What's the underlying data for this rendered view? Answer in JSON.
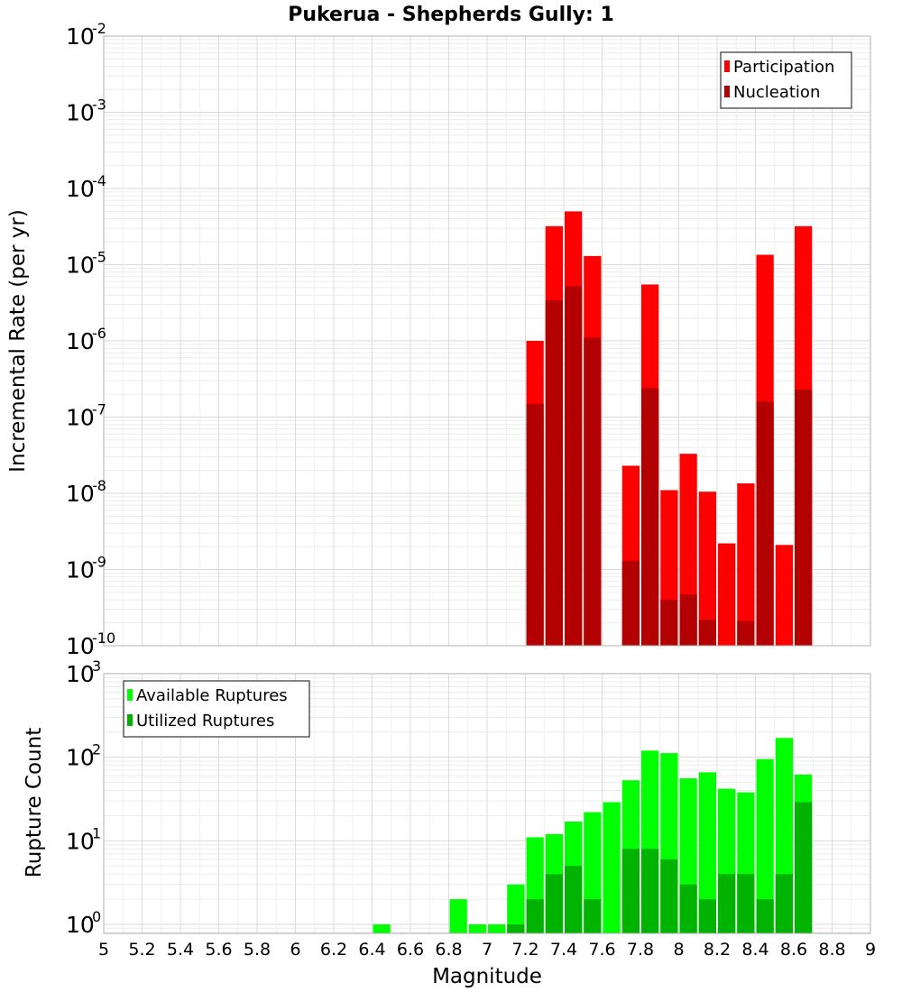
{
  "chart_data": [
    {
      "type": "bar",
      "title": "Pukerua - Shepherds Gully: 1",
      "ylabel": "Incremental Rate (per yr)",
      "xlabel": "",
      "yscale": "log",
      "ylim": [
        1e-10,
        0.01
      ],
      "xlim": [
        5,
        9
      ],
      "bar_width": 0.1,
      "grid": true,
      "legend_position": "top-right",
      "x": [
        7.25,
        7.35,
        7.45,
        7.55,
        7.75,
        7.85,
        7.95,
        8.05,
        8.15,
        8.25,
        8.35,
        8.45,
        8.55,
        8.65
      ],
      "series": [
        {
          "name": "Participation",
          "color": "#ff0000",
          "values": [
            1e-06,
            3.2e-05,
            5e-05,
            1.3e-05,
            2.3e-08,
            5.5e-06,
            1.1e-08,
            3.3e-08,
            1.05e-08,
            2.2e-09,
            1.35e-08,
            1.35e-05,
            2.1e-09,
            3.2e-05
          ]
        },
        {
          "name": "Nucleation",
          "color": "#b30000",
          "values": [
            1.5e-07,
            3.4e-06,
            5.2e-06,
            1.1e-06,
            1.3e-09,
            2.4e-07,
            4e-10,
            4.7e-10,
            2.2e-10,
            null,
            2.1e-10,
            1.6e-07,
            null,
            2.3e-07
          ]
        }
      ]
    },
    {
      "type": "bar",
      "title": "",
      "ylabel": "Rupture Count",
      "xlabel": "Magnitude",
      "yscale": "log",
      "ylim": [
        0.78,
        1000
      ],
      "xlim": [
        5,
        9
      ],
      "bar_width": 0.1,
      "grid": true,
      "legend_position": "top-left",
      "xticks": [
        5,
        5.2,
        5.4,
        5.6,
        5.8,
        6,
        6.2,
        6.4,
        6.6,
        6.8,
        7,
        7.2,
        7.4,
        7.6,
        7.8,
        8,
        8.2,
        8.4,
        8.6,
        8.8,
        9
      ],
      "xtick_labels": [
        "5",
        "5.2",
        "5.4",
        "5.6",
        "5.8",
        "6",
        "6.2",
        "6.4",
        "6.6",
        "6.8",
        "7",
        "7.2",
        "7.4",
        "7.6",
        "7.8",
        "8",
        "8.2",
        "8.4",
        "8.6",
        "8.8",
        "9"
      ],
      "x": [
        6.45,
        6.85,
        6.95,
        7.05,
        7.15,
        7.25,
        7.35,
        7.45,
        7.55,
        7.65,
        7.75,
        7.85,
        7.95,
        8.05,
        8.15,
        8.25,
        8.35,
        8.45,
        8.55,
        8.65
      ],
      "series": [
        {
          "name": "Available Ruptures",
          "color": "#00ff00",
          "values": [
            1,
            2,
            1,
            1,
            3,
            11,
            12,
            17,
            22,
            29,
            53,
            120,
            112,
            56,
            66,
            42,
            38,
            95,
            170,
            62
          ]
        },
        {
          "name": "Utilized Ruptures",
          "color": "#00b300",
          "values": [
            null,
            null,
            null,
            null,
            1,
            2,
            4,
            5,
            2,
            null,
            8,
            8,
            6,
            3,
            2,
            4,
            4,
            2,
            4,
            29
          ]
        }
      ]
    }
  ]
}
